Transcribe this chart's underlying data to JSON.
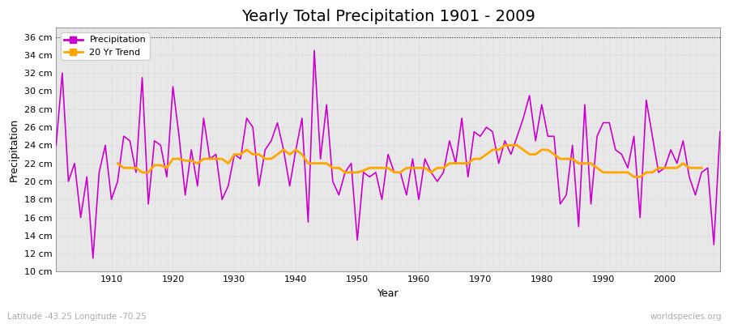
{
  "title": "Yearly Total Precipitation 1901 - 2009",
  "xlabel": "Year",
  "ylabel": "Precipitation",
  "lat_lon_label": "Latitude -43.25 Longitude -70.25",
  "source_label": "worldspecies.org",
  "ylim": [
    10,
    37
  ],
  "ytick_values": [
    10,
    12,
    14,
    16,
    18,
    20,
    22,
    24,
    26,
    28,
    30,
    32,
    34,
    36
  ],
  "ytick_labels": [
    "10 cm",
    "12 cm",
    "14 cm",
    "16 cm",
    "18 cm",
    "20 cm",
    "22 cm",
    "24 cm",
    "26 cm",
    "28 cm",
    "30 cm",
    "32 cm",
    "34 cm",
    "36 cm"
  ],
  "fig_bg_color": "#ffffff",
  "plot_bg_color": "#e8e8e8",
  "precip_color": "#cc00cc",
  "trend_color": "#ffa500",
  "legend_labels": [
    "Precipitation",
    "20 Yr Trend"
  ],
  "years": [
    1901,
    1902,
    1903,
    1904,
    1905,
    1906,
    1907,
    1908,
    1909,
    1910,
    1911,
    1912,
    1913,
    1914,
    1915,
    1916,
    1917,
    1918,
    1919,
    1920,
    1921,
    1922,
    1923,
    1924,
    1925,
    1926,
    1927,
    1928,
    1929,
    1930,
    1931,
    1932,
    1933,
    1934,
    1935,
    1936,
    1937,
    1938,
    1939,
    1940,
    1941,
    1942,
    1943,
    1944,
    1945,
    1946,
    1947,
    1948,
    1949,
    1950,
    1951,
    1952,
    1953,
    1954,
    1955,
    1956,
    1957,
    1958,
    1959,
    1960,
    1961,
    1962,
    1963,
    1964,
    1965,
    1966,
    1967,
    1968,
    1969,
    1970,
    1971,
    1972,
    1973,
    1974,
    1975,
    1976,
    1977,
    1978,
    1979,
    1980,
    1981,
    1982,
    1983,
    1984,
    1985,
    1986,
    1987,
    1988,
    1989,
    1990,
    1991,
    1992,
    1993,
    1994,
    1995,
    1996,
    1997,
    1998,
    1999,
    2000,
    2001,
    2002,
    2003,
    2004,
    2005,
    2006,
    2007,
    2008,
    2009
  ],
  "precip": [
    24.0,
    32.0,
    20.0,
    22.0,
    16.0,
    20.5,
    11.5,
    21.0,
    24.0,
    18.0,
    20.0,
    25.0,
    24.5,
    21.0,
    31.5,
    17.5,
    24.5,
    24.0,
    20.5,
    30.5,
    25.0,
    18.5,
    23.5,
    19.5,
    27.0,
    22.5,
    23.0,
    18.0,
    19.5,
    23.0,
    22.5,
    27.0,
    26.0,
    19.5,
    23.5,
    24.5,
    26.5,
    23.5,
    19.5,
    23.5,
    27.0,
    15.5,
    34.5,
    22.5,
    28.5,
    20.0,
    18.5,
    21.0,
    22.0,
    13.5,
    21.0,
    20.5,
    21.0,
    18.0,
    23.0,
    21.0,
    21.0,
    18.5,
    22.5,
    18.0,
    22.5,
    21.0,
    20.0,
    21.0,
    24.5,
    22.0,
    27.0,
    20.5,
    25.5,
    25.0,
    26.0,
    25.5,
    22.0,
    24.5,
    23.0,
    25.0,
    27.0,
    29.5,
    24.5,
    28.5,
    25.0,
    25.0,
    17.5,
    18.5,
    24.0,
    15.0,
    28.5,
    17.5,
    25.0,
    26.5,
    26.5,
    23.5,
    23.0,
    21.5,
    25.0,
    16.0,
    29.0,
    25.0,
    21.0,
    21.5,
    23.5,
    22.0,
    24.5,
    20.5,
    18.5,
    21.0,
    21.5,
    13.0,
    25.5
  ],
  "trend": [
    null,
    null,
    null,
    null,
    null,
    null,
    null,
    null,
    null,
    null,
    22.0,
    21.5,
    21.5,
    21.5,
    21.0,
    21.0,
    21.8,
    21.8,
    21.5,
    22.5,
    22.5,
    22.3,
    22.3,
    22.0,
    22.5,
    22.5,
    22.5,
    22.5,
    22.0,
    23.0,
    23.0,
    23.5,
    23.0,
    23.0,
    22.5,
    22.5,
    23.0,
    23.5,
    23.0,
    23.5,
    23.0,
    22.0,
    22.0,
    22.0,
    22.0,
    21.5,
    21.5,
    21.0,
    21.0,
    21.0,
    21.2,
    21.5,
    21.5,
    21.5,
    21.5,
    21.0,
    21.0,
    21.5,
    21.5,
    21.5,
    21.5,
    21.0,
    21.5,
    21.5,
    22.0,
    22.0,
    22.0,
    22.0,
    22.5,
    22.5,
    23.0,
    23.5,
    23.5,
    24.0,
    24.0,
    24.0,
    23.5,
    23.0,
    23.0,
    23.5,
    23.5,
    23.0,
    22.5,
    22.5,
    22.5,
    22.0,
    22.0,
    22.0,
    21.5,
    21.0,
    21.0,
    21.0,
    21.0,
    21.0,
    20.5,
    20.5,
    21.0,
    21.0,
    21.5,
    21.5,
    21.5,
    21.5,
    22.0,
    21.5,
    21.5,
    21.5,
    null,
    null,
    null
  ],
  "xlim": [
    1901,
    2009
  ],
  "xtick_values": [
    1910,
    1920,
    1930,
    1940,
    1950,
    1960,
    1970,
    1980,
    1990,
    2000
  ],
  "grid_color": "#cccccc",
  "top_line_color": "#333333",
  "spine_color": "#999999",
  "title_fontsize": 14,
  "axis_label_fontsize": 9,
  "tick_fontsize": 8,
  "legend_fontsize": 8,
  "precip_linewidth": 1.2,
  "trend_linewidth": 2.0,
  "annotation_fontsize": 7.5,
  "annotation_color": "#aaaaaa"
}
